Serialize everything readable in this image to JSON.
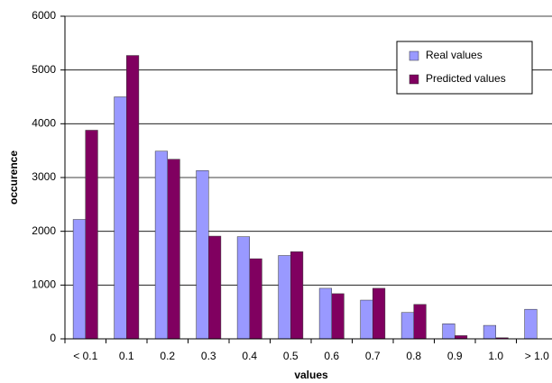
{
  "chart_data": {
    "type": "bar",
    "x_label": "values",
    "y_label": "occurence",
    "categories": [
      "< 0.1",
      "0.1",
      "0.2",
      "0.3",
      "0.4",
      "0.5",
      "0.6",
      "0.7",
      "0.8",
      "0.9",
      "1.0",
      "> 1.0"
    ],
    "series": [
      {
        "name": "Real values",
        "color": "#9999ff",
        "values": [
          2220,
          4500,
          3490,
          3130,
          1900,
          1550,
          940,
          720,
          490,
          280,
          250,
          550
        ]
      },
      {
        "name": "Predicted values",
        "color": "#800060",
        "values": [
          3880,
          5270,
          3340,
          1910,
          1490,
          1620,
          840,
          940,
          640,
          60,
          20,
          0
        ]
      }
    ],
    "ylim": [
      0,
      6000
    ],
    "yticks": [
      0,
      1000,
      2000,
      3000,
      4000,
      5000,
      6000
    ],
    "grid": true,
    "legend": "top-right"
  }
}
